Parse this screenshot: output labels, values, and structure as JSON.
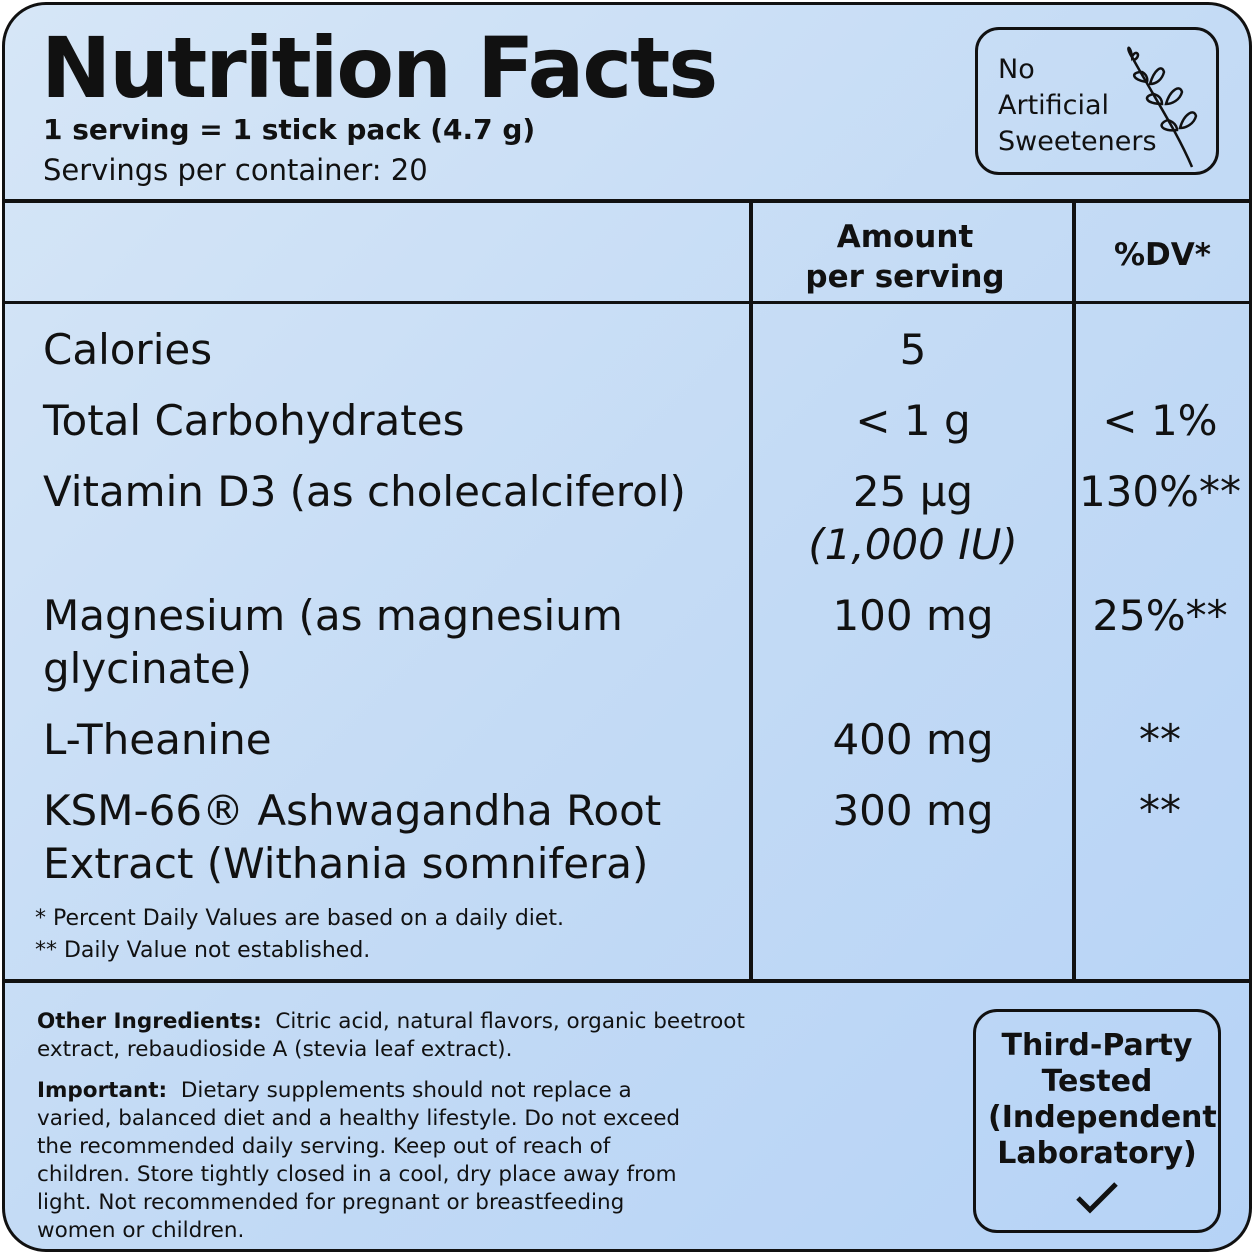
{
  "header": {
    "title": "Nutrition Facts",
    "serving_size": "1 serving = 1 stick pack (4.7 g)",
    "servings_per_container": "Servings per container: 20"
  },
  "badge_top": {
    "text": "No Artificial Sweeteners"
  },
  "table": {
    "columns": [
      "Amount per serving",
      "%DV*"
    ],
    "rows": [
      {
        "name": "Calories",
        "amount": "5",
        "dv": null
      },
      {
        "name": "Total Carbohydrates",
        "amount": "< 1 g",
        "dv": "< 1%"
      },
      {
        "name": "Vitamin D3 (as cholecalciferol)",
        "amount": "25 µg",
        "amount_note": "(1,000 IU)",
        "dv": "130%**"
      },
      {
        "name": "Magnesium (as magnesium glycinate)",
        "amount": "100 mg",
        "dv": "25%**"
      },
      {
        "name": "L-Theanine",
        "amount": "400 mg",
        "dv": "**"
      },
      {
        "name": "KSM-66® Ashwagandha Root Extract (Withania somnifera)",
        "amount": "300 mg",
        "dv": "**"
      }
    ],
    "footnotes": [
      "* Percent Daily Values are based on a daily diet.",
      "** Daily Value not established."
    ]
  },
  "other_ingredients": {
    "label": "Other Ingredients:",
    "text": "Citric acid, natural flavors, organic beetroot extract, rebaudioside A (stevia leaf extract)."
  },
  "important": {
    "label": "Important:",
    "text": "Dietary supplements should not replace a varied, balanced diet and a healthy lifestyle. Do not exceed the recommended daily serving. Keep out of reach of children. Store tightly closed in a cool, dry place away from light. Not recommended for pregnant or breastfeeding women or children."
  },
  "badge_bottom": {
    "title": "Third-Party Tested",
    "note": "(Independent Laboratory)"
  }
}
